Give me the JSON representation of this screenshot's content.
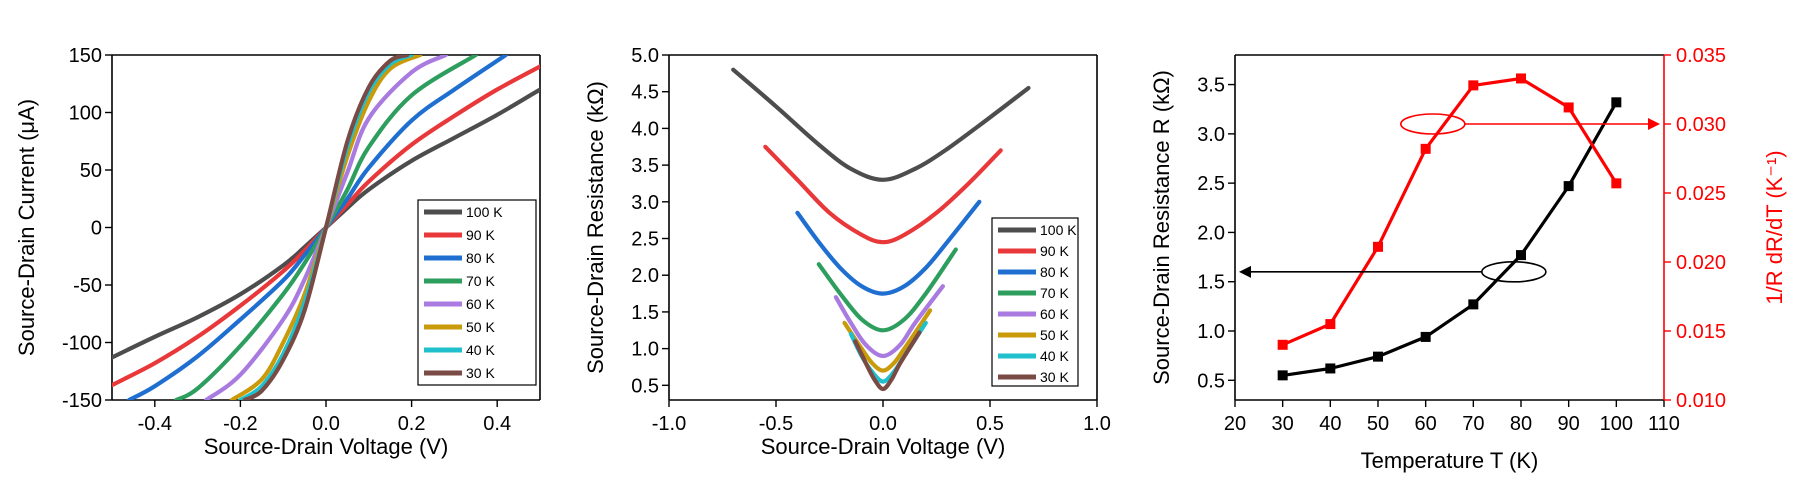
{
  "chart_data": [
    {
      "type": "line",
      "xlabel": "Source-Drain Voltage (V)",
      "ylabel": "Source-Drain Current (μA)",
      "xlim": [
        -0.5,
        0.5
      ],
      "ylim": [
        -150,
        150
      ],
      "xticks": [
        -0.4,
        -0.2,
        0.0,
        0.2,
        0.4
      ],
      "xtick_labels": [
        "-0.4",
        "-0.2",
        "0.0",
        "0.2",
        "0.4"
      ],
      "yticks": [
        -150,
        -100,
        -50,
        0,
        50,
        100,
        150
      ],
      "ytick_labels": [
        "-150",
        "-100",
        "-50",
        "0",
        "50",
        "100",
        "150"
      ],
      "legend_position": "bottom-right",
      "series": [
        {
          "name": "100 K",
          "color": "#4d4d4d",
          "x": [
            -0.5,
            -0.4,
            -0.3,
            -0.2,
            -0.1,
            -0.05,
            0.0,
            0.05,
            0.1,
            0.2,
            0.3,
            0.4,
            0.5
          ],
          "y": [
            -113,
            -95,
            -78,
            -58,
            -33,
            -17,
            0,
            17,
            33,
            58,
            78,
            98,
            120
          ]
        },
        {
          "name": "90 K",
          "color": "#e8383a",
          "x": [
            -0.5,
            -0.4,
            -0.3,
            -0.2,
            -0.1,
            -0.05,
            0.0,
            0.05,
            0.1,
            0.2,
            0.3,
            0.4,
            0.5
          ],
          "y": [
            -137,
            -118,
            -95,
            -68,
            -38,
            -20,
            0,
            20,
            40,
            72,
            97,
            120,
            140
          ]
        },
        {
          "name": "80 K",
          "color": "#1f6fd1",
          "x": [
            -0.46,
            -0.4,
            -0.3,
            -0.2,
            -0.1,
            -0.05,
            0.0,
            0.05,
            0.1,
            0.2,
            0.3,
            0.42
          ],
          "y": [
            -150,
            -138,
            -112,
            -80,
            -46,
            -24,
            0,
            25,
            52,
            93,
            120,
            150
          ]
        },
        {
          "name": "70 K",
          "color": "#2e9e5e",
          "x": [
            -0.35,
            -0.3,
            -0.2,
            -0.1,
            -0.05,
            0.0,
            0.05,
            0.1,
            0.2,
            0.35
          ],
          "y": [
            -150,
            -140,
            -103,
            -58,
            -31,
            0,
            33,
            70,
            115,
            150
          ]
        },
        {
          "name": "60 K",
          "color": "#a97ae0",
          "x": [
            -0.28,
            -0.2,
            -0.1,
            -0.05,
            0.0,
            0.05,
            0.1,
            0.2,
            0.28
          ],
          "y": [
            -150,
            -128,
            -80,
            -45,
            0,
            48,
            95,
            135,
            150
          ]
        },
        {
          "name": "50 K",
          "color": "#c99a0a",
          "x": [
            -0.22,
            -0.15,
            -0.1,
            -0.05,
            0.0,
            0.05,
            0.1,
            0.15,
            0.22
          ],
          "y": [
            -150,
            -132,
            -100,
            -58,
            0,
            62,
            110,
            138,
            150
          ]
        },
        {
          "name": "40 K",
          "color": "#1fc0cc",
          "x": [
            -0.2,
            -0.15,
            -0.1,
            -0.05,
            0.0,
            0.05,
            0.1,
            0.15,
            0.2
          ],
          "y": [
            -150,
            -138,
            -110,
            -65,
            0,
            70,
            118,
            142,
            150
          ]
        },
        {
          "name": "30 K",
          "color": "#7a4a44",
          "x": [
            -0.19,
            -0.15,
            -0.1,
            -0.05,
            0.0,
            0.05,
            0.1,
            0.15,
            0.19
          ],
          "y": [
            -150,
            -142,
            -115,
            -72,
            0,
            75,
            122,
            145,
            150
          ]
        }
      ]
    },
    {
      "type": "line",
      "xlabel": "Source-Drain Voltage (V)",
      "ylabel": "Source-Drain Resistance (kΩ)",
      "xlim": [
        -1.0,
        1.0
      ],
      "ylim": [
        0.3,
        5.0
      ],
      "xticks": [
        -1.0,
        -0.5,
        0.0,
        0.5,
        1.0
      ],
      "xtick_labels": [
        "-1.0",
        "-0.5",
        "0.0",
        "0.5",
        "1.0"
      ],
      "yticks": [
        0.5,
        1.0,
        1.5,
        2.0,
        2.5,
        3.0,
        3.5,
        4.0,
        4.5,
        5.0
      ],
      "ytick_labels": [
        "0.5",
        "1.0",
        "1.5",
        "2.0",
        "2.5",
        "3.0",
        "3.5",
        "4.0",
        "4.5",
        "5.0"
      ],
      "legend_position": "bottom-right",
      "series": [
        {
          "name": "100 K",
          "color": "#4d4d4d",
          "x": [
            -0.7,
            -0.5,
            -0.3,
            -0.15,
            0.0,
            0.15,
            0.3,
            0.5,
            0.68
          ],
          "y": [
            4.8,
            4.3,
            3.78,
            3.45,
            3.3,
            3.45,
            3.72,
            4.15,
            4.55
          ]
        },
        {
          "name": "90 K",
          "color": "#e8383a",
          "x": [
            -0.55,
            -0.4,
            -0.25,
            -0.1,
            0.0,
            0.1,
            0.25,
            0.4,
            0.55
          ],
          "y": [
            3.75,
            3.3,
            2.85,
            2.55,
            2.45,
            2.55,
            2.85,
            3.25,
            3.7
          ]
        },
        {
          "name": "80 K",
          "color": "#1f6fd1",
          "x": [
            -0.4,
            -0.3,
            -0.2,
            -0.1,
            0.0,
            0.1,
            0.2,
            0.3,
            0.45
          ],
          "y": [
            2.85,
            2.45,
            2.1,
            1.85,
            1.75,
            1.85,
            2.1,
            2.45,
            3.0
          ]
        },
        {
          "name": "70 K",
          "color": "#2e9e5e",
          "x": [
            -0.3,
            -0.2,
            -0.1,
            0.0,
            0.1,
            0.2,
            0.34
          ],
          "y": [
            2.15,
            1.75,
            1.4,
            1.25,
            1.4,
            1.75,
            2.35
          ]
        },
        {
          "name": "60 K",
          "color": "#a97ae0",
          "x": [
            -0.22,
            -0.15,
            -0.08,
            0.0,
            0.08,
            0.15,
            0.28
          ],
          "y": [
            1.7,
            1.35,
            1.05,
            0.9,
            1.05,
            1.35,
            1.85
          ]
        },
        {
          "name": "50 K",
          "color": "#c99a0a",
          "x": [
            -0.18,
            -0.1,
            -0.05,
            0.0,
            0.05,
            0.1,
            0.22
          ],
          "y": [
            1.35,
            1.0,
            0.8,
            0.7,
            0.8,
            1.0,
            1.52
          ]
        },
        {
          "name": "40 K",
          "color": "#1fc0cc",
          "x": [
            -0.15,
            -0.1,
            -0.05,
            0.0,
            0.05,
            0.1,
            0.2
          ],
          "y": [
            1.2,
            0.9,
            0.68,
            0.55,
            0.68,
            0.9,
            1.35
          ]
        },
        {
          "name": "30 K",
          "color": "#7a4a44",
          "x": [
            -0.13,
            -0.08,
            -0.04,
            0.0,
            0.04,
            0.08,
            0.17
          ],
          "y": [
            1.1,
            0.8,
            0.58,
            0.45,
            0.58,
            0.8,
            1.22
          ]
        }
      ]
    },
    {
      "type": "line",
      "xlabel": "Temperature T (K)",
      "ylabel": "Source-Drain Resistance R (kΩ)",
      "ylabel_right": "1/R dR/dT (K⁻¹)",
      "xlim": [
        20,
        110
      ],
      "ylim": [
        0.3,
        3.8
      ],
      "ylim_right": [
        0.01,
        0.035
      ],
      "xticks": [
        20,
        30,
        40,
        50,
        60,
        70,
        80,
        90,
        100,
        110
      ],
      "xtick_labels": [
        "20",
        "30",
        "40",
        "50",
        "60",
        "70",
        "80",
        "90",
        "100",
        "110"
      ],
      "yticks": [
        0.5,
        1.0,
        1.5,
        2.0,
        2.5,
        3.0,
        3.5
      ],
      "ytick_labels": [
        "0.5",
        "1.0",
        "1.5",
        "2.0",
        "2.5",
        "3.0",
        "3.5"
      ],
      "yticks_right": [
        0.01,
        0.015,
        0.02,
        0.025,
        0.03,
        0.035
      ],
      "ytick_labels_right": [
        "0.010",
        "0.015",
        "0.020",
        "0.025",
        "0.030",
        "0.035"
      ],
      "series": [
        {
          "axis": "left",
          "color": "#000000",
          "x": [
            30,
            40,
            50,
            60,
            70,
            80,
            90,
            100
          ],
          "y": [
            0.55,
            0.62,
            0.74,
            0.94,
            1.27,
            1.77,
            2.47,
            3.32
          ]
        },
        {
          "axis": "right",
          "color": "#ff0000",
          "x": [
            30,
            40,
            50,
            60,
            70,
            80,
            90,
            100
          ],
          "y": [
            0.014,
            0.0155,
            0.0211,
            0.0282,
            0.0328,
            0.0333,
            0.0312,
            0.0257
          ]
        }
      ]
    }
  ]
}
